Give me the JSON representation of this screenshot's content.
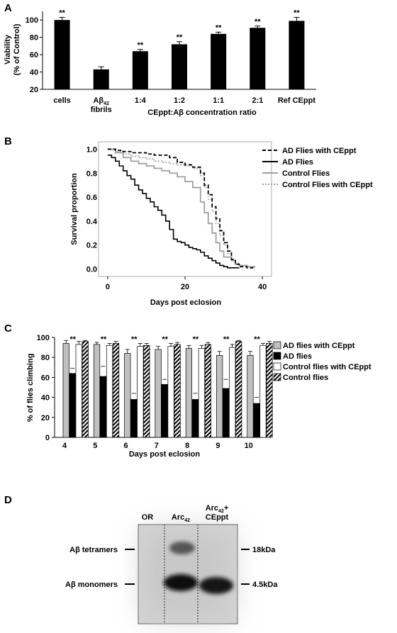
{
  "colors": {
    "ink": "#000000",
    "grey_bar": "#c0c0c0",
    "control_line": "#a0a0a0",
    "blot_bg": "#d8d8d8",
    "blot_band": "#1e1e1e"
  },
  "sig_mark": "**",
  "chart_data": [
    {
      "panel": "A",
      "type": "bar",
      "title": "",
      "ylabel": "Viability\n(% of Control)",
      "xlabel": "CEppt:Aβ concentration ratio",
      "categories": [
        "cells",
        "Aβ42 fibrils",
        "1:4",
        "1:2",
        "1:1",
        "2:1",
        "Ref CEppt"
      ],
      "category_lines": [
        [
          "cells"
        ],
        [
          "Aβ",
          "42",
          "fibrils"
        ],
        [
          "1:4"
        ],
        [
          "1:2"
        ],
        [
          "1:1"
        ],
        [
          "2:1"
        ],
        [
          "Ref CEppt"
        ]
      ],
      "values": [
        100,
        43,
        64,
        72,
        84,
        91,
        99
      ],
      "errors": [
        3,
        3,
        2,
        3,
        2,
        2,
        4
      ],
      "significant": [
        true,
        false,
        true,
        true,
        true,
        true,
        true
      ],
      "yticks": [
        20,
        40,
        60,
        80,
        100
      ],
      "ylim": [
        20,
        110
      ],
      "grid": false
    },
    {
      "panel": "B",
      "type": "line",
      "title": "",
      "ylabel": "Survival proportion",
      "xlabel": "Days post eclosion",
      "xticks": [
        0,
        20,
        40
      ],
      "yticks": [
        0.0,
        0.2,
        0.4,
        0.6,
        0.8,
        1.0
      ],
      "ytick_labels": [
        "0.0",
        "0.2",
        "0.4",
        "0.6",
        "0.8",
        "1.0"
      ],
      "xlim": [
        -2,
        42
      ],
      "ylim": [
        -0.05,
        1.05
      ],
      "legend_position": "right",
      "series": [
        {
          "name": "AD Flies with CEppt",
          "style": "dash-black",
          "points": [
            [
              0,
              1.0
            ],
            [
              2,
              0.99
            ],
            [
              4,
              0.98
            ],
            [
              6,
              0.97
            ],
            [
              8,
              0.97
            ],
            [
              10,
              0.96
            ],
            [
              12,
              0.95
            ],
            [
              14,
              0.95
            ],
            [
              16,
              0.93
            ],
            [
              18,
              0.89
            ],
            [
              20,
              0.87
            ],
            [
              22,
              0.85
            ],
            [
              24,
              0.8
            ],
            [
              25,
              0.7
            ],
            [
              26,
              0.62
            ],
            [
              27,
              0.52
            ],
            [
              28,
              0.42
            ],
            [
              29,
              0.32
            ],
            [
              30,
              0.22
            ],
            [
              31,
              0.15
            ],
            [
              32,
              0.08
            ],
            [
              33,
              0.04
            ],
            [
              34,
              0.02
            ],
            [
              36,
              0.01
            ],
            [
              38,
              0.01
            ]
          ]
        },
        {
          "name": "AD Flies",
          "style": "solid-black",
          "points": [
            [
              0,
              0.95
            ],
            [
              1,
              0.93
            ],
            [
              2,
              0.9
            ],
            [
              3,
              0.86
            ],
            [
              4,
              0.82
            ],
            [
              5,
              0.78
            ],
            [
              6,
              0.75
            ],
            [
              7,
              0.7
            ],
            [
              8,
              0.66
            ],
            [
              9,
              0.63
            ],
            [
              10,
              0.59
            ],
            [
              11,
              0.56
            ],
            [
              12,
              0.52
            ],
            [
              13,
              0.49
            ],
            [
              14,
              0.45
            ],
            [
              15,
              0.4
            ],
            [
              16,
              0.33
            ],
            [
              17,
              0.25
            ],
            [
              18,
              0.23
            ],
            [
              19,
              0.22
            ],
            [
              20,
              0.2
            ],
            [
              21,
              0.18
            ],
            [
              22,
              0.17
            ],
            [
              23,
              0.16
            ],
            [
              24,
              0.14
            ],
            [
              25,
              0.11
            ],
            [
              26,
              0.09
            ],
            [
              27,
              0.07
            ],
            [
              28,
              0.05
            ],
            [
              29,
              0.03
            ],
            [
              30,
              0.02
            ],
            [
              31,
              0.01
            ],
            [
              34,
              0.01
            ]
          ]
        },
        {
          "name": "Control Flies",
          "style": "solid-grey",
          "points": [
            [
              0,
              1.0
            ],
            [
              2,
              0.97
            ],
            [
              4,
              0.93
            ],
            [
              6,
              0.9
            ],
            [
              8,
              0.88
            ],
            [
              10,
              0.86
            ],
            [
              12,
              0.84
            ],
            [
              14,
              0.82
            ],
            [
              16,
              0.8
            ],
            [
              18,
              0.77
            ],
            [
              20,
              0.73
            ],
            [
              22,
              0.68
            ],
            [
              24,
              0.56
            ],
            [
              25,
              0.47
            ],
            [
              26,
              0.38
            ],
            [
              27,
              0.3
            ],
            [
              28,
              0.22
            ],
            [
              29,
              0.15
            ],
            [
              30,
              0.1
            ],
            [
              32,
              0.07
            ],
            [
              33,
              0.04
            ],
            [
              34,
              0.03
            ],
            [
              36,
              0.02
            ],
            [
              38,
              0.01
            ]
          ]
        },
        {
          "name": "Control Flies with CEppt",
          "style": "dash-grey",
          "points": [
            [
              0,
              1.0
            ],
            [
              2,
              0.98
            ],
            [
              4,
              0.96
            ],
            [
              6,
              0.94
            ],
            [
              8,
              0.93
            ],
            [
              10,
              0.92
            ],
            [
              12,
              0.9
            ],
            [
              14,
              0.89
            ],
            [
              16,
              0.88
            ],
            [
              18,
              0.87
            ],
            [
              20,
              0.86
            ],
            [
              22,
              0.84
            ],
            [
              24,
              0.78
            ],
            [
              25,
              0.68
            ],
            [
              26,
              0.58
            ],
            [
              27,
              0.48
            ],
            [
              28,
              0.38
            ],
            [
              29,
              0.28
            ],
            [
              30,
              0.2
            ],
            [
              31,
              0.13
            ],
            [
              32,
              0.08
            ],
            [
              33,
              0.05
            ],
            [
              34,
              0.03
            ],
            [
              36,
              0.02
            ],
            [
              38,
              0.01
            ]
          ]
        }
      ]
    },
    {
      "panel": "C",
      "type": "bar",
      "title": "",
      "ylabel": "% of flies climbing",
      "xlabel": "Days post eclosion",
      "categories": [
        "4",
        "5",
        "6",
        "7",
        "8",
        "9",
        "10"
      ],
      "yticks": [
        0,
        20,
        40,
        60,
        80,
        100
      ],
      "ylim": [
        0,
        100
      ],
      "legend_position": "right",
      "significant": [
        true,
        true,
        true,
        true,
        true,
        true,
        true
      ],
      "series": [
        {
          "name": "AD flies with CEppt",
          "fill": "grey",
          "values": [
            94,
            93,
            84,
            88,
            89,
            82,
            82
          ],
          "errors": [
            3,
            2,
            4,
            3,
            3,
            4,
            4
          ]
        },
        {
          "name": "AD flies",
          "fill": "black",
          "values": [
            64,
            61,
            38,
            53,
            38,
            49,
            34
          ],
          "errors": [
            5,
            10,
            6,
            5,
            6,
            9,
            6
          ]
        },
        {
          "name": "Control flies with CEppt",
          "fill": "white",
          "values": [
            93,
            92,
            91,
            91,
            89,
            90,
            92
          ],
          "errors": [
            3,
            2,
            3,
            3,
            3,
            3,
            2
          ]
        },
        {
          "name": "Control flies",
          "fill": "hatch",
          "values": [
            96,
            94,
            92,
            93,
            93,
            96,
            94
          ],
          "errors": [
            1,
            2,
            2,
            2,
            2,
            1,
            2
          ]
        }
      ]
    }
  ],
  "panel_d": {
    "label": "D",
    "lanes": [
      {
        "name": "OR",
        "lines": [
          "OR"
        ]
      },
      {
        "name": "Arc42",
        "lines": [
          "Arc",
          "42"
        ]
      },
      {
        "name": "Arc42+CEppt",
        "lines": [
          "Arc",
          "42",
          "+",
          "CEppt"
        ]
      }
    ],
    "left_labels": {
      "tetramers": "Aβ tetramers",
      "monomers": "Aβ monomers"
    },
    "right_labels": {
      "tetramers": "18kDa",
      "monomers": "4.5kDa"
    }
  },
  "panel_labels": {
    "a": "A",
    "b": "B",
    "c": "C"
  }
}
